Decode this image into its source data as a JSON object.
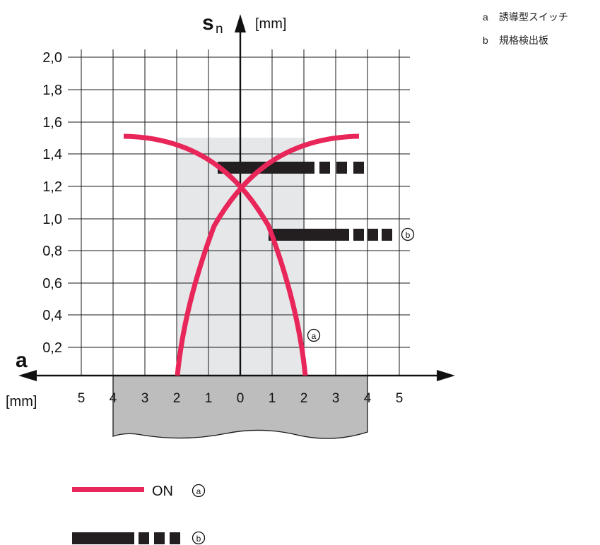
{
  "axis": {
    "y_symbol_main": "s",
    "y_symbol_sub": "n",
    "y_unit": "[mm]",
    "x_symbol": "a",
    "x_unit": "[mm]",
    "y_ticks": [
      "0,2",
      "0,4",
      "0,6",
      "0,8",
      "1,0",
      "1,2",
      "1,4",
      "1,6",
      "1,8",
      "2,0"
    ],
    "x_ticks": [
      "5",
      "4",
      "3",
      "2",
      "1",
      "0",
      "1",
      "2",
      "3",
      "4",
      "5"
    ]
  },
  "legend_right": [
    {
      "key": "a",
      "text": "誘導型スイッチ"
    },
    {
      "key": "b",
      "text": "規格検出板"
    }
  ],
  "markers": {
    "a": "a",
    "b": "b"
  },
  "legend_bottom": {
    "on_label": "ON"
  },
  "colors": {
    "curve": "#e8265a",
    "bar": "#231f20",
    "zone": "#e6e7e9",
    "target": "#bdbdbd",
    "grid": "#1a1a1a"
  }
}
